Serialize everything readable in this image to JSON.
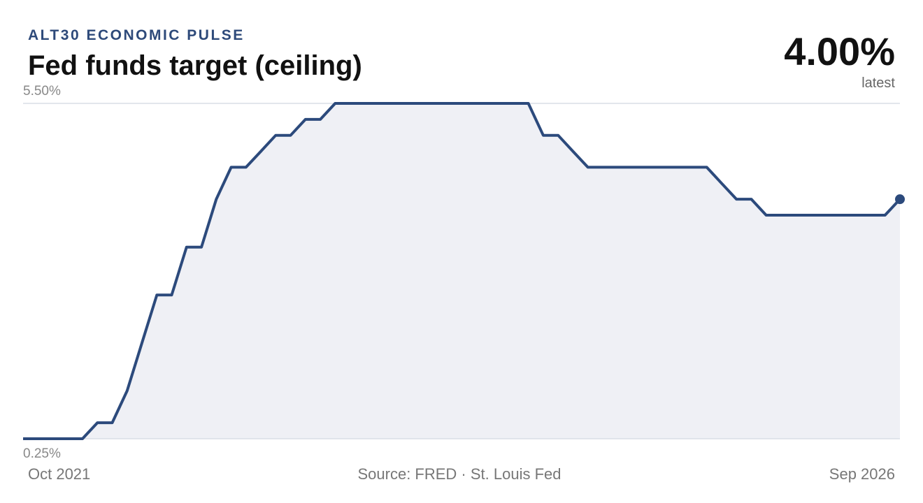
{
  "chart_data": {
    "type": "line",
    "kicker": "ALT30 ECONOMIC PULSE",
    "title": "Fed funds target (ceiling)",
    "latest_label": "4.00%",
    "latest_caption": "latest",
    "source": "Source: FRED · St. Louis Fed",
    "categories": [
      "Oct 2021",
      null,
      null,
      null,
      null,
      null,
      null,
      null,
      null,
      null,
      null,
      null,
      null,
      null,
      null,
      null,
      null,
      null,
      null,
      null,
      null,
      null,
      null,
      null,
      null,
      null,
      null,
      null,
      null,
      null,
      null,
      null,
      null,
      null,
      null,
      null,
      null,
      null,
      null,
      null,
      null,
      null,
      null,
      null,
      null,
      null,
      null,
      null,
      null,
      null,
      null,
      null,
      null,
      null,
      null,
      null,
      null,
      null,
      null,
      "Sep 2026"
    ],
    "series": [
      {
        "color": "#2c4a7c",
        "fill": "#eff0f5",
        "values": [
          0.25,
          0.25,
          0.25,
          0.25,
          0.25,
          0.5,
          0.5,
          1.0,
          1.75,
          2.5,
          2.5,
          3.25,
          3.25,
          4.0,
          4.5,
          4.5,
          4.75,
          5.0,
          5.0,
          5.25,
          5.25,
          5.5,
          5.5,
          5.5,
          5.5,
          5.5,
          5.5,
          5.5,
          5.5,
          5.5,
          5.5,
          5.5,
          5.5,
          5.5,
          5.5,
          5.0,
          5.0,
          4.75,
          4.5,
          4.5,
          4.5,
          4.5,
          4.5,
          4.5,
          4.5,
          4.5,
          4.5,
          4.25,
          4.0,
          4.0,
          3.75,
          3.75,
          3.75,
          3.75,
          3.75,
          3.75,
          3.75,
          3.75,
          3.75,
          4.0
        ]
      }
    ],
    "ylim": [
      0.25,
      5.5
    ],
    "yticks": [
      {
        "value": 5.5,
        "label": "5.50%"
      },
      {
        "value": 0.25,
        "label": "0.25%"
      }
    ],
    "grid": true
  }
}
